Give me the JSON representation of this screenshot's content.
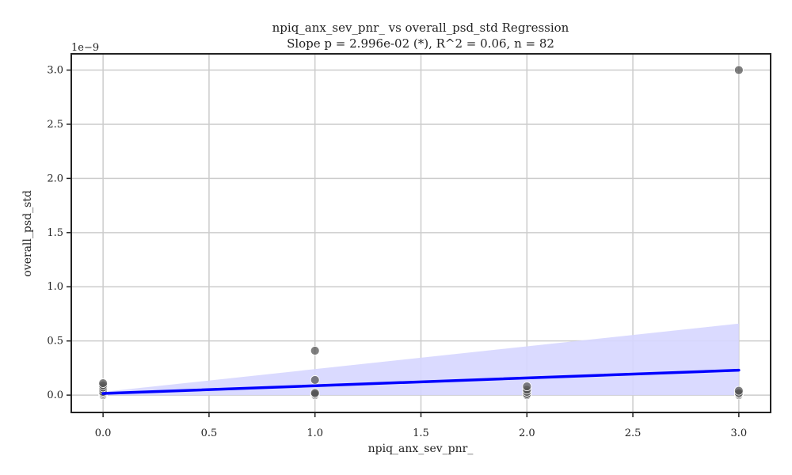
{
  "chart_data": {
    "type": "scatter",
    "title": "npiq_anx_sev_pnr_ vs overall_psd_std Regression",
    "subtitle": "Slope p = 2.996e-02 (*), R^2 = 0.06, n = 82",
    "xlabel": "npiq_anx_sev_pnr_",
    "ylabel": "overall_psd_std",
    "y_offset_label": "1e−9",
    "xlim": [
      -0.15,
      3.15
    ],
    "ylim": [
      -0.16,
      3.15
    ],
    "x_ticks": [
      0.0,
      0.5,
      1.0,
      1.5,
      2.0,
      2.5,
      3.0
    ],
    "x_tick_labels": [
      "0.0",
      "0.5",
      "1.0",
      "1.5",
      "2.0",
      "2.5",
      "3.0"
    ],
    "y_ticks": [
      0.0,
      0.5,
      1.0,
      1.5,
      2.0,
      2.5,
      3.0
    ],
    "y_tick_labels": [
      "0.0",
      "0.5",
      "1.0",
      "1.5",
      "2.0",
      "2.5",
      "3.0"
    ],
    "grid": true,
    "points": [
      {
        "x": 0,
        "y": 0.0
      },
      {
        "x": 0,
        "y": 0.01
      },
      {
        "x": 0,
        "y": 0.02
      },
      {
        "x": 0,
        "y": 0.03
      },
      {
        "x": 0,
        "y": 0.05
      },
      {
        "x": 0,
        "y": 0.07
      },
      {
        "x": 0,
        "y": 0.09
      },
      {
        "x": 0,
        "y": 0.11
      },
      {
        "x": 1,
        "y": 0.0
      },
      {
        "x": 1,
        "y": 0.01
      },
      {
        "x": 1,
        "y": 0.02
      },
      {
        "x": 1,
        "y": 0.14
      },
      {
        "x": 1,
        "y": 0.41
      },
      {
        "x": 2,
        "y": 0.0
      },
      {
        "x": 2,
        "y": 0.01
      },
      {
        "x": 2,
        "y": 0.03
      },
      {
        "x": 2,
        "y": 0.05
      },
      {
        "x": 2,
        "y": 0.08
      },
      {
        "x": 3,
        "y": 0.0
      },
      {
        "x": 3,
        "y": 0.01
      },
      {
        "x": 3,
        "y": 0.02
      },
      {
        "x": 3,
        "y": 0.04
      },
      {
        "x": 3,
        "y": 3.0
      }
    ],
    "regression": {
      "x": [
        0,
        3
      ],
      "y": [
        0.015,
        0.23
      ],
      "ci_upper": [
        0.03,
        0.66
      ],
      "ci_lower": [
        0.0,
        0.0
      ]
    },
    "colors": {
      "points": "#555555",
      "line": "#0000ff",
      "ci_fill": "#d6d6ff",
      "grid": "#cccccc",
      "axes": "#222222"
    }
  }
}
